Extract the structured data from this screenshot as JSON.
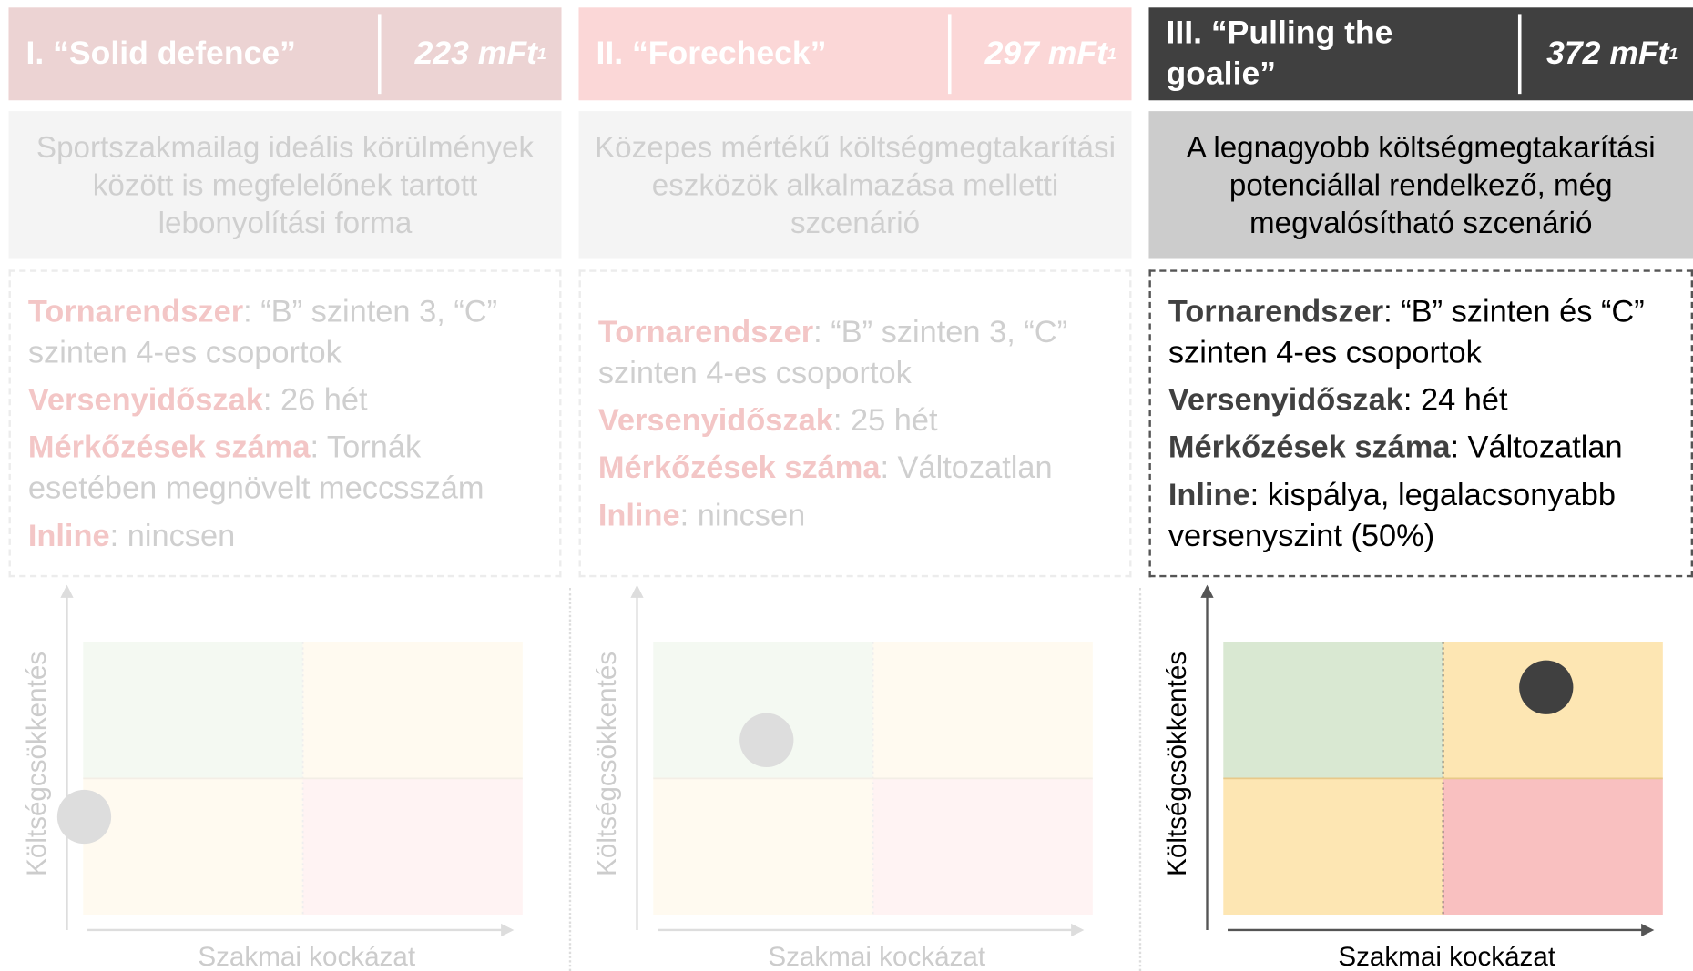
{
  "scenarios": [
    {
      "title": "I. “Solid defence”",
      "cost": "223 mFt",
      "note": "1",
      "description": "Sportszakmailag ideális körülmények között is megfelelőnek tartott lebonyolítási forma",
      "details": [
        {
          "label": "Tornarendszer",
          "text": ": “B” szinten 3, “C” szinten 4-es csoportok"
        },
        {
          "label": "Versenyidőszak",
          "text": ": 26 hét"
        },
        {
          "label": "Mérkőzések száma",
          "text": ": Tornák esetében megnövelt meccsszám"
        },
        {
          "label": "Inline",
          "text": ": nincsen"
        }
      ],
      "y_axis": "Költségcsökkentés",
      "x_axis": "Szakmai kockázat"
    },
    {
      "title": "II. “Forecheck”",
      "cost": "297 mFt",
      "note": "1",
      "description": "Közepes mértékű költségmegtakarítási eszközök alkalmazása melletti szcenárió",
      "details": [
        {
          "label": "Tornarendszer",
          "text": ": “B” szinten 3, “C” szinten 4-es csoportok"
        },
        {
          "label": "Versenyidőszak",
          "text": ": 25 hét"
        },
        {
          "label": "Mérkőzések száma",
          "text": ": Változatlan"
        },
        {
          "label": "Inline",
          "text": ": nincsen"
        }
      ],
      "y_axis": "Költségcsökkentés",
      "x_axis": "Szakmai kockázat"
    },
    {
      "title": "III. “Pulling the goalie”",
      "cost": "372 mFt",
      "note": "1",
      "description": "A legnagyobb költségmegtakarítási potenciállal rendelkező, még megvalósítható szcenárió",
      "details": [
        {
          "label": "Tornarendszer",
          "text": ": “B” szinten és “C” szinten 4-es csoportok"
        },
        {
          "label": "Versenyidőszak",
          "text": ": 24 hét"
        },
        {
          "label": "Mérkőzések száma",
          "text": ": Változatlan"
        },
        {
          "label": "Inline",
          "text": ": kispálya, legalacsonyabb versenyszint (50%)"
        }
      ],
      "y_axis": "Költségcsökkentés",
      "x_axis": "Szakmai kockázat"
    }
  ]
}
